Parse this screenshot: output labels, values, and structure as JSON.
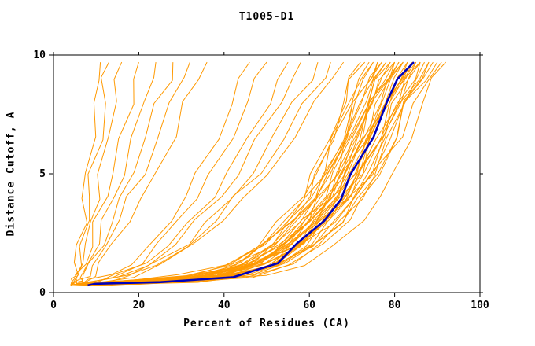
{
  "colors": {
    "background": "#ffffff",
    "frame": "#000000",
    "text": "#000000",
    "model_line": "#FF9900",
    "reference_line": "#0000BB"
  },
  "chart_data": {
    "type": "line",
    "title": "T1005-D1",
    "xlabel": "Percent of Residues (CA)",
    "ylabel": "Distance Cutoff, A",
    "xlim": [
      0,
      100
    ],
    "ylim": [
      0,
      10
    ],
    "xticks": [
      0,
      20,
      40,
      60,
      80,
      100
    ],
    "yticks": [
      0,
      5,
      10
    ],
    "grid": false,
    "legend": "none",
    "y_samples": [
      0.3,
      0.35,
      0.5,
      0.7,
      1.2,
      2,
      3,
      4,
      5,
      6.5,
      8,
      9,
      9.7
    ],
    "reference": {
      "name": "highlighted-model-curve",
      "x": [
        8,
        9,
        26,
        42,
        52,
        58,
        63,
        67,
        70.5,
        74.5,
        78,
        81.5,
        84.5
      ]
    },
    "models": [
      [
        5,
        15,
        36,
        49,
        59,
        66,
        72,
        77,
        80,
        83,
        87,
        89,
        92
      ],
      [
        4.5,
        11,
        31,
        43,
        54,
        61,
        67,
        72,
        76,
        80,
        83,
        87,
        90
      ],
      [
        4,
        8,
        23,
        35,
        47,
        57,
        64,
        70,
        74,
        79,
        83,
        86,
        89
      ],
      [
        5,
        12,
        31,
        43,
        53,
        60,
        66,
        71,
        74,
        78,
        81,
        85,
        88
      ],
      [
        4,
        12,
        33,
        46,
        56,
        62,
        68,
        72,
        75,
        79,
        82,
        85,
        87
      ],
      [
        4.5,
        11,
        29,
        41,
        51,
        58,
        64,
        69,
        72,
        76,
        80,
        83,
        86
      ],
      [
        5,
        11,
        24,
        35,
        47,
        56,
        62,
        68,
        72,
        77,
        81,
        84,
        86
      ],
      [
        4,
        10,
        27,
        39,
        51,
        58,
        64,
        68,
        72,
        76,
        79,
        83,
        85
      ],
      [
        5,
        14,
        34,
        46,
        55,
        61,
        67,
        71,
        74,
        77,
        80,
        83,
        85
      ],
      [
        4.5,
        9,
        22,
        33,
        45,
        54,
        60,
        66,
        70,
        74,
        79,
        82,
        84
      ],
      [
        4,
        10,
        28,
        40,
        50,
        57,
        62,
        67,
        70,
        74,
        78,
        81,
        84
      ],
      [
        5,
        14,
        33,
        45,
        54,
        60,
        65,
        69,
        72,
        75,
        78,
        81,
        83
      ],
      [
        4,
        8,
        21,
        32,
        44,
        53,
        59,
        65,
        69,
        73,
        78,
        81,
        83
      ],
      [
        4.5,
        11,
        28,
        40,
        49,
        56,
        61,
        66,
        69,
        73,
        76,
        79,
        82
      ],
      [
        5,
        11,
        24,
        34,
        45,
        54,
        60,
        65,
        68,
        73,
        77,
        80,
        82
      ],
      [
        4,
        12,
        31,
        43,
        52,
        58,
        63,
        67,
        70,
        73,
        76,
        79,
        81
      ],
      [
        4.5,
        11,
        28,
        39,
        48,
        55,
        61,
        65,
        68,
        72,
        75,
        78,
        81
      ],
      [
        4,
        8,
        21,
        31,
        42,
        51,
        57,
        63,
        66,
        71,
        75,
        78,
        80
      ],
      [
        5,
        12,
        28,
        39,
        48,
        55,
        60,
        64,
        67,
        71,
        74,
        77,
        80
      ],
      [
        4,
        12,
        30,
        42,
        50,
        57,
        62,
        66,
        68,
        72,
        74,
        77,
        79
      ],
      [
        4.5,
        11,
        27,
        38,
        47,
        54,
        59,
        63,
        66,
        70,
        73,
        76,
        79
      ],
      [
        4,
        8,
        20,
        31,
        41,
        50,
        56,
        61,
        65,
        69,
        73,
        76,
        78
      ],
      [
        5,
        13,
        31,
        42,
        51,
        56,
        61,
        65,
        68,
        71,
        74,
        76,
        78
      ],
      [
        4,
        10,
        26,
        37,
        46,
        52,
        57,
        62,
        65,
        68,
        71,
        74,
        77
      ],
      [
        4.5,
        9,
        21,
        31,
        41,
        49,
        55,
        60,
        63,
        68,
        71,
        74,
        76
      ],
      [
        4,
        11,
        29,
        40,
        49,
        54,
        59,
        63,
        66,
        69,
        72,
        74,
        76
      ],
      [
        4,
        9,
        25,
        36,
        44,
        51,
        56,
        60,
        63,
        66,
        69,
        72,
        75
      ],
      [
        4.5,
        8,
        20,
        30,
        40,
        48,
        53,
        58,
        62,
        66,
        69,
        72,
        74
      ],
      [
        4,
        9,
        25,
        35,
        43,
        50,
        54,
        58,
        61,
        65,
        68,
        70,
        73
      ],
      [
        4,
        11,
        28,
        38,
        46,
        52,
        56,
        60,
        62,
        65,
        68,
        70,
        72
      ],
      [
        4,
        8,
        23,
        35,
        48,
        58,
        65,
        71,
        75,
        81,
        85,
        88,
        91
      ],
      [
        4,
        12,
        33,
        46,
        56,
        63,
        69,
        73,
        76,
        80,
        83,
        86,
        88
      ],
      [
        4,
        9,
        23,
        35,
        46,
        56,
        62,
        68,
        72,
        77,
        81,
        84,
        86
      ],
      [
        5,
        12,
        29,
        41,
        50,
        58,
        63,
        68,
        71,
        75,
        78,
        81,
        84
      ],
      [
        4,
        12,
        31,
        43,
        52,
        59,
        64,
        68,
        71,
        74,
        77,
        80,
        82
      ],
      [
        4.5,
        11,
        27,
        39,
        48,
        54,
        60,
        64,
        67,
        71,
        74,
        77,
        80
      ],
      [
        5,
        10,
        22,
        32,
        42,
        50,
        56,
        61,
        64,
        68,
        72,
        75,
        77
      ],
      [
        4.5,
        12,
        29,
        40,
        48,
        54,
        59,
        62,
        65,
        68,
        71,
        73,
        75
      ],
      [
        4,
        7,
        12,
        18,
        26,
        33,
        39,
        45,
        50,
        56,
        62,
        65,
        68
      ],
      [
        4,
        7,
        12,
        17,
        25,
        31,
        38,
        43,
        48,
        54,
        59,
        63,
        65
      ],
      [
        4.5,
        8,
        12,
        18,
        24,
        31,
        36,
        42,
        46,
        52,
        56,
        60,
        62
      ],
      [
        4,
        7,
        11,
        16,
        22,
        28,
        34,
        39,
        43,
        48,
        53,
        56,
        58
      ],
      [
        4,
        7,
        11,
        15,
        21,
        27,
        32,
        37,
        41,
        46,
        50,
        53,
        55
      ],
      [
        4,
        6,
        10,
        14,
        20,
        25,
        29,
        33,
        37,
        42,
        45,
        48,
        50
      ],
      [
        4,
        6,
        9,
        13,
        18,
        23,
        27,
        31,
        34,
        38,
        42,
        44,
        46
      ],
      [
        4.5,
        6,
        8,
        9,
        11,
        14,
        17,
        21,
        24,
        28,
        31,
        34,
        36
      ],
      [
        4,
        5,
        6,
        8,
        10,
        12,
        15,
        18,
        21,
        24,
        28,
        30,
        32
      ],
      [
        4,
        5,
        6,
        7,
        9,
        11,
        14,
        16,
        18,
        22,
        24,
        27,
        28
      ],
      [
        4,
        5,
        6,
        7,
        8,
        10,
        12,
        14,
        16,
        19,
        21,
        23,
        24
      ],
      [
        4,
        5,
        5,
        6,
        7,
        9,
        10,
        12,
        14,
        16,
        18,
        19,
        20
      ],
      [
        4,
        4,
        5,
        6,
        6,
        8,
        9,
        10,
        11,
        13,
        14,
        15,
        16
      ],
      [
        4,
        4,
        5,
        5,
        6,
        7,
        8,
        8,
        9,
        11,
        12,
        12,
        13
      ],
      [
        4,
        4,
        5,
        5,
        5,
        6,
        7,
        7,
        8,
        9,
        10,
        11,
        11
      ]
    ]
  }
}
